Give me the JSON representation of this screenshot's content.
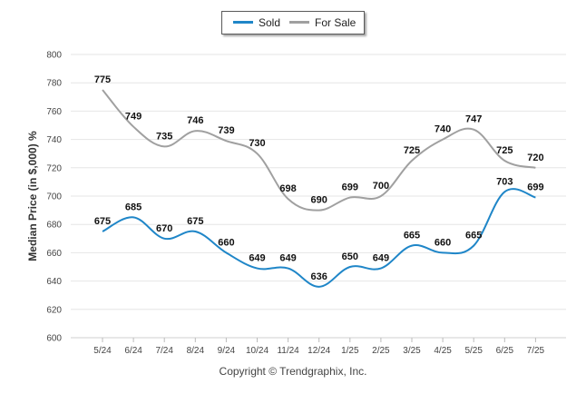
{
  "chart_data": {
    "type": "line",
    "categories": [
      "5/24",
      "6/24",
      "7/24",
      "8/24",
      "9/24",
      "10/24",
      "11/24",
      "12/24",
      "1/25",
      "2/25",
      "3/25",
      "4/25",
      "5/25",
      "6/25",
      "7/25"
    ],
    "series": [
      {
        "name": "Sold",
        "color": "#1f86c8",
        "values": [
          675,
          685,
          670,
          675,
          660,
          649,
          649,
          636,
          650,
          649,
          665,
          660,
          665,
          703,
          699
        ]
      },
      {
        "name": "For Sale",
        "color": "#a0a0a0",
        "values": [
          775,
          749,
          735,
          746,
          739,
          730,
          698,
          690,
          699,
          700,
          725,
          740,
          747,
          725,
          720
        ]
      }
    ],
    "ylabel": "Median Price (in $,000) %",
    "ylim": [
      600,
      800
    ],
    "yticks": [
      600,
      620,
      640,
      660,
      680,
      700,
      720,
      740,
      760,
      780,
      800
    ],
    "grid": true,
    "legend_position": "top-center",
    "data_labels": true
  },
  "footer": {
    "copyright": "Copyright © Trendgraphix, Inc."
  }
}
